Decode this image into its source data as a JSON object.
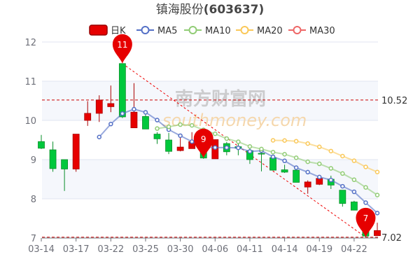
{
  "chart_data": {
    "type": "candlestick",
    "title_name": "镇海股份",
    "title_code": "(603637)",
    "legend": [
      {
        "name": "日K",
        "color": "#e60000"
      },
      {
        "name": "MA5",
        "color": "#5470c6",
        "window": 5
      },
      {
        "name": "MA10",
        "color": "#91cc75",
        "window": 10
      },
      {
        "name": "MA20",
        "color": "#fac858",
        "window": 20
      },
      {
        "name": "MA30",
        "color": "#ee6666",
        "window": 30
      }
    ],
    "legend_placement": "top",
    "ylim": [
      7,
      12
    ],
    "yticks": [
      7,
      8,
      9,
      10,
      11,
      12
    ],
    "grid": true,
    "up_color": "#e60000",
    "down_color": "#00c83c",
    "categories": [
      "03-14",
      "03-15",
      "03-16",
      "03-17",
      "03-18",
      "03-21",
      "03-22",
      "03-23",
      "03-24",
      "03-25",
      "03-28",
      "03-29",
      "03-30",
      "03-31",
      "04-01",
      "04-06",
      "04-07",
      "04-08",
      "04-11",
      "04-12",
      "04-13",
      "04-14",
      "04-15",
      "04-18",
      "04-19",
      "04-20",
      "04-21",
      "04-22",
      "04-25",
      "04-26"
    ],
    "xtick_labels": [
      "03-14",
      "03-17",
      "03-22",
      "03-25",
      "03-30",
      "04-06",
      "04-11",
      "04-14",
      "04-19",
      "04-22"
    ],
    "ohlc": [
      [
        9.46,
        9.63,
        9.27,
        9.29
      ],
      [
        9.25,
        9.46,
        8.69,
        8.77
      ],
      [
        9.0,
        9.0,
        8.2,
        8.76
      ],
      [
        8.76,
        9.65,
        8.69,
        9.65
      ],
      [
        10.0,
        10.49,
        9.86,
        10.18
      ],
      [
        10.18,
        10.64,
        9.96,
        10.52
      ],
      [
        10.35,
        10.89,
        10.21,
        10.43
      ],
      [
        11.45,
        11.45,
        10.06,
        10.09
      ],
      [
        9.81,
        10.95,
        9.81,
        10.21
      ],
      [
        10.1,
        10.15,
        9.78,
        9.78
      ],
      [
        9.65,
        9.7,
        9.4,
        9.53
      ],
      [
        9.5,
        9.68,
        9.14,
        9.21
      ],
      [
        9.23,
        9.56,
        9.21,
        9.32
      ],
      [
        9.28,
        9.7,
        9.28,
        9.46
      ],
      [
        9.35,
        9.4,
        9.02,
        9.04
      ],
      [
        9.02,
        9.51,
        9.02,
        9.51
      ],
      [
        9.41,
        9.45,
        9.11,
        9.2
      ],
      [
        9.33,
        9.45,
        9.11,
        9.29
      ],
      [
        9.23,
        9.3,
        8.89,
        9.0
      ],
      [
        9.16,
        9.24,
        8.7,
        9.14
      ],
      [
        9.05,
        9.07,
        8.72,
        8.73
      ],
      [
        8.74,
        8.87,
        8.66,
        8.68
      ],
      [
        8.73,
        8.73,
        8.42,
        8.42
      ],
      [
        8.3,
        8.47,
        8.13,
        8.43
      ],
      [
        8.37,
        8.54,
        8.35,
        8.52
      ],
      [
        8.5,
        8.59,
        8.25,
        8.35
      ],
      [
        8.22,
        8.22,
        7.8,
        7.88
      ],
      [
        7.92,
        7.95,
        7.71,
        7.71
      ],
      [
        7.6,
        7.6,
        7.02,
        7.05
      ],
      [
        7.06,
        7.39,
        7.06,
        7.19
      ]
    ],
    "mark_points": [
      {
        "label": "11",
        "category": "03-23",
        "value": 11.45
      },
      {
        "label": "9",
        "category": "04-01",
        "value": 9.04
      },
      {
        "label": "7",
        "category": "04-25",
        "value": 7.02
      }
    ],
    "mark_lines": [
      {
        "label": "10.52",
        "value": 10.52
      },
      {
        "label": "7.02",
        "value": 7.02
      }
    ],
    "trend_line": {
      "from": [
        "03-23",
        11.45
      ],
      "to": [
        "04-25",
        7.02
      ]
    },
    "watermark": {
      "cn": "南方财富网",
      "en": "southmoney.com"
    }
  }
}
